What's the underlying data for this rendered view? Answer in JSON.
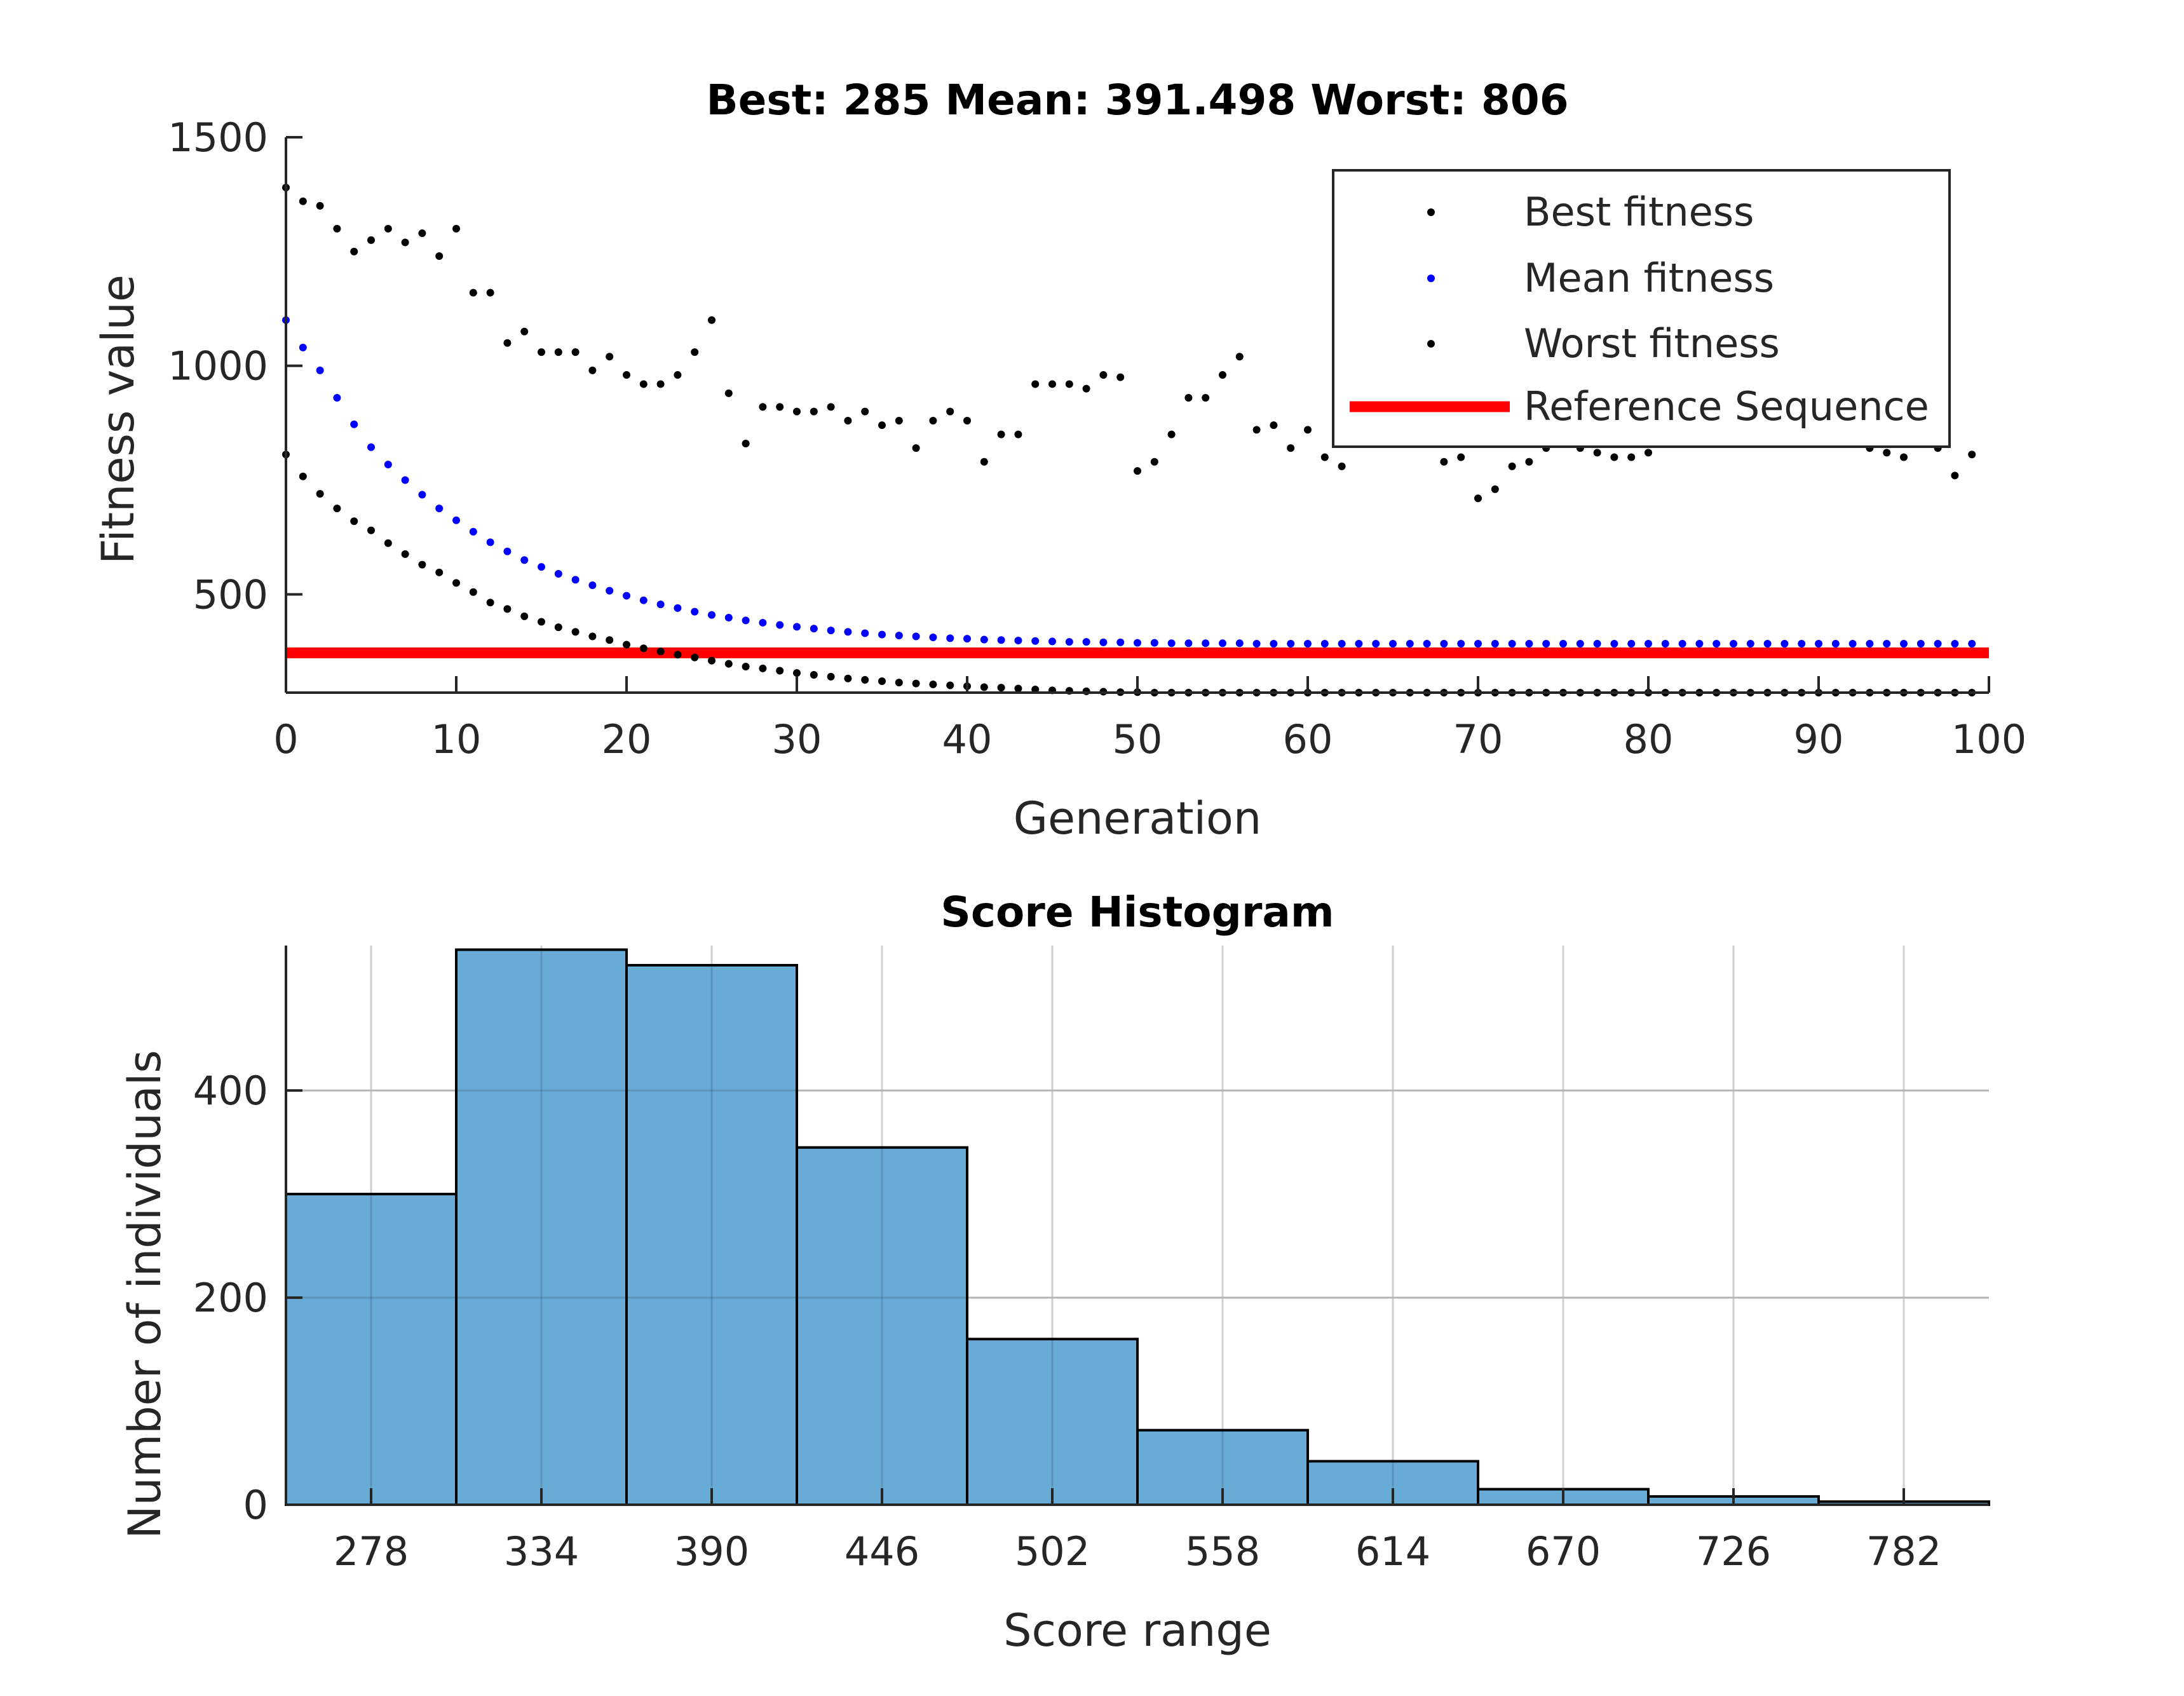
{
  "chart_data": [
    {
      "type": "scatter",
      "title": "Best: 285 Mean: 391.498 Worst: 806",
      "xlabel": "Generation",
      "ylabel": "Fitness value",
      "xlim": [
        0,
        100
      ],
      "ylim": [
        285,
        1500
      ],
      "xticks": [
        "0",
        "10",
        "20",
        "30",
        "40",
        "50",
        "60",
        "70",
        "80",
        "90",
        "100"
      ],
      "yticks": [
        "500",
        "1000",
        "1500"
      ],
      "grid": false,
      "legend": {
        "placement": "top-right",
        "entries": [
          "Best fitness",
          "Mean fitness",
          "Worst fitness",
          "Reference Sequence"
        ]
      },
      "colors": {
        "best": "#000000",
        "mean": "#0000ff",
        "worst": "#000000",
        "reference": "#ff0000"
      },
      "series": [
        {
          "name": "Best fitness",
          "x": [
            0,
            1,
            2,
            3,
            4,
            5,
            6,
            7,
            8,
            9,
            10,
            11,
            12,
            13,
            14,
            15,
            16,
            17,
            18,
            19,
            20,
            21,
            22,
            23,
            24,
            25,
            26,
            27,
            28,
            29,
            30,
            31,
            32,
            33,
            34,
            35,
            36,
            37,
            38,
            39,
            40,
            41,
            42,
            43,
            44,
            45,
            46,
            47,
            48,
            49,
            50,
            51,
            52,
            53,
            54,
            55,
            56,
            57,
            58,
            59,
            60,
            61,
            62,
            63,
            64,
            65,
            66,
            67,
            68,
            69,
            70,
            71,
            72,
            73,
            74,
            75,
            76,
            77,
            78,
            79,
            80,
            81,
            82,
            83,
            84,
            85,
            86,
            87,
            88,
            89,
            90,
            91,
            92,
            93,
            94,
            95,
            96,
            97,
            98,
            99
          ],
          "y": [
            806,
            758,
            720,
            688,
            660,
            640,
            612,
            588,
            565,
            548,
            525,
            505,
            482,
            468,
            452,
            440,
            428,
            418,
            408,
            400,
            390,
            382,
            375,
            368,
            362,
            355,
            348,
            342,
            338,
            333,
            328,
            324,
            320,
            316,
            313,
            310,
            307,
            305,
            303,
            301,
            299,
            297,
            296,
            294,
            292,
            290,
            289,
            288,
            287,
            286,
            286,
            285,
            285,
            285,
            285,
            285,
            285,
            285,
            285,
            285,
            285,
            285,
            285,
            285,
            285,
            285,
            285,
            285,
            285,
            285,
            285,
            285,
            285,
            285,
            285,
            285,
            285,
            285,
            285,
            285,
            285,
            285,
            285,
            285,
            285,
            285,
            285,
            285,
            285,
            285,
            285,
            285,
            285,
            285,
            285,
            285,
            285,
            285,
            285,
            285
          ]
        },
        {
          "name": "Mean fitness",
          "x": [
            0,
            1,
            2,
            3,
            4,
            5,
            6,
            7,
            8,
            9,
            10,
            11,
            12,
            13,
            14,
            15,
            16,
            17,
            18,
            19,
            20,
            21,
            22,
            23,
            24,
            25,
            26,
            27,
            28,
            29,
            30,
            31,
            32,
            33,
            34,
            35,
            36,
            37,
            38,
            39,
            40,
            41,
            42,
            43,
            44,
            45,
            46,
            47,
            48,
            49,
            50,
            51,
            52,
            53,
            54,
            55,
            56,
            57,
            58,
            59,
            60,
            61,
            62,
            63,
            64,
            65,
            66,
            67,
            68,
            69,
            70,
            71,
            72,
            73,
            74,
            75,
            76,
            77,
            78,
            79,
            80,
            81,
            82,
            83,
            84,
            85,
            86,
            87,
            88,
            89,
            90,
            91,
            92,
            93,
            94,
            95,
            96,
            97,
            98,
            99
          ],
          "y": [
            1100,
            1040,
            990,
            930,
            872,
            822,
            784,
            750,
            718,
            688,
            662,
            637,
            614,
            594,
            575,
            560,
            545,
            532,
            520,
            508,
            497,
            487,
            478,
            470,
            462,
            455,
            449,
            443,
            438,
            433,
            429,
            425,
            421,
            418,
            415,
            412,
            410,
            408,
            406,
            404,
            403,
            401,
            400,
            399,
            398,
            397,
            396,
            396,
            395,
            395,
            394,
            394,
            393,
            393,
            393,
            393,
            393,
            392,
            392,
            392,
            392,
            392,
            392,
            392,
            392,
            392,
            392,
            392,
            392,
            392,
            392,
            392,
            392,
            392,
            392,
            392,
            392,
            392,
            392,
            392,
            392,
            392,
            392,
            392,
            392,
            392,
            392,
            392,
            392,
            392,
            392,
            392,
            392,
            392,
            392,
            392,
            392,
            392,
            392,
            392
          ]
        },
        {
          "name": "Worst fitness",
          "x": [
            0,
            1,
            2,
            3,
            4,
            5,
            6,
            7,
            8,
            9,
            10,
            11,
            12,
            13,
            14,
            15,
            16,
            17,
            18,
            19,
            20,
            21,
            22,
            23,
            24,
            25,
            26,
            27,
            28,
            29,
            30,
            31,
            32,
            33,
            34,
            35,
            36,
            37,
            38,
            39,
            40,
            41,
            42,
            43,
            44,
            45,
            46,
            47,
            48,
            49,
            50,
            51,
            52,
            53,
            54,
            55,
            56,
            57,
            58,
            59,
            60,
            61,
            62,
            63,
            64,
            65,
            66,
            67,
            68,
            69,
            70,
            71,
            72,
            73,
            74,
            75,
            76,
            77,
            78,
            79,
            80,
            81,
            82,
            83,
            84,
            85,
            86,
            87,
            88,
            89,
            90,
            91,
            92,
            93,
            94,
            95,
            96,
            97,
            98,
            99
          ],
          "y": [
            1390,
            1360,
            1350,
            1300,
            1250,
            1275,
            1300,
            1270,
            1290,
            1240,
            1300,
            1160,
            1160,
            1050,
            1075,
            1030,
            1030,
            1030,
            990,
            1020,
            980,
            960,
            960,
            980,
            1030,
            1100,
            940,
            830,
            910,
            910,
            900,
            900,
            910,
            880,
            900,
            870,
            880,
            820,
            880,
            900,
            880,
            790,
            850,
            850,
            960,
            960,
            960,
            950,
            980,
            975,
            770,
            790,
            850,
            930,
            930,
            980,
            1020,
            860,
            870,
            820,
            860,
            800,
            780,
            860,
            870,
            870,
            860,
            850,
            790,
            800,
            710,
            730,
            780,
            790,
            820,
            830,
            820,
            810,
            800,
            800,
            810,
            830,
            840,
            850,
            860,
            870,
            880,
            880,
            870,
            860,
            850,
            840,
            830,
            820,
            810,
            800,
            830,
            820,
            760,
            806
          ]
        },
        {
          "name": "Reference Sequence",
          "x": [
            0,
            100
          ],
          "y": [
            372,
            372
          ]
        }
      ]
    },
    {
      "type": "bar",
      "title": "Score Histogram",
      "xlabel": "Score range",
      "ylabel": "Number of individuals",
      "categories": [
        "278",
        "334",
        "390",
        "446",
        "502",
        "558",
        "614",
        "670",
        "726",
        "782"
      ],
      "values": [
        300,
        536,
        521,
        345,
        160,
        72,
        42,
        15,
        8,
        3
      ],
      "ylim": [
        0,
        540
      ],
      "yticks": [
        "0",
        "200",
        "400"
      ],
      "grid": true,
      "colors": {
        "bar_fill": "#66a9d6",
        "bar_edge": "#000000",
        "grid": "#d0d0d0"
      }
    }
  ]
}
